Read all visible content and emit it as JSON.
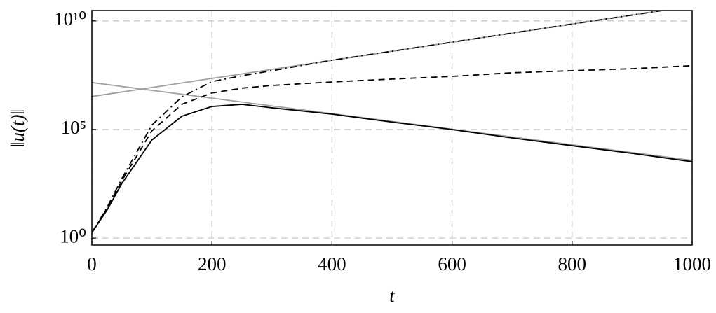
{
  "chart_data": {
    "type": "line",
    "x_label": "t",
    "y_label": "‖u(t)‖",
    "ylog": true,
    "grid": true,
    "xlim": [
      0,
      1000
    ],
    "xticks": [
      0,
      200,
      400,
      600,
      800,
      1000
    ],
    "ylim": [
      0.48,
      30000000000
    ],
    "yticks": [
      {
        "value": 1,
        "label": "10⁰"
      },
      {
        "value": 100000,
        "label": "10⁵"
      },
      {
        "value": 10000000000,
        "label": "10¹⁰"
      }
    ],
    "series": [
      {
        "color": "#a0a0a0",
        "dash": "solid",
        "x": [
          0,
          1000
        ],
        "values": [
          14500000,
          3800
        ]
      },
      {
        "color": "#a0a0a0",
        "dash": "solid",
        "x": [
          0,
          950
        ],
        "values": [
          3300000,
          30000000000
        ]
      },
      {
        "color": "#000000",
        "dash": "solid",
        "x": [
          0,
          25,
          50,
          100,
          150,
          200,
          250,
          300,
          400,
          500,
          600,
          700,
          800,
          900,
          1000
        ],
        "values": [
          1.8,
          19,
          330,
          33000,
          410000,
          1150000,
          1450000,
          1000000,
          510000,
          220000,
          100000,
          41000,
          18000,
          8000,
          3300
        ]
      },
      {
        "color": "#000000",
        "dash": "dashed",
        "x": [
          0,
          25,
          50,
          100,
          150,
          200,
          250,
          300,
          400,
          500,
          600,
          700,
          800,
          900,
          1000
        ],
        "values": [
          1.8,
          22,
          440,
          87000,
          1450000,
          4800000,
          8000000,
          10700000,
          15500000,
          21000000,
          28000000,
          41000000,
          51000000,
          63000000,
          87000000
        ]
      },
      {
        "color": "#000000",
        "dash": "dashdot",
        "x": [
          0,
          25,
          50,
          100,
          150,
          200,
          250,
          300,
          400,
          500,
          600,
          700,
          800,
          900,
          950
        ],
        "values": [
          1.8,
          25,
          550,
          160000,
          3200000,
          16000000,
          30000000,
          51000000,
          155000000,
          400000000,
          1050000000,
          2750000000,
          7200000000,
          18600000000,
          30000000000
        ]
      }
    ]
  }
}
